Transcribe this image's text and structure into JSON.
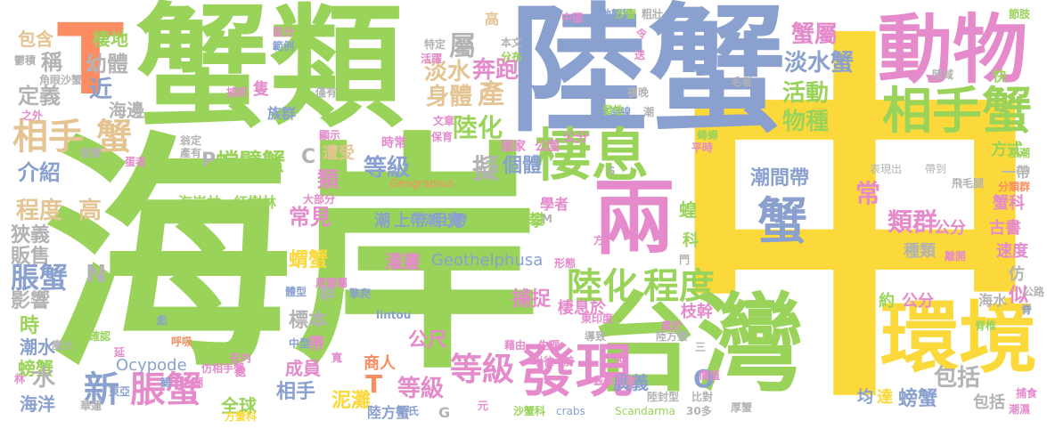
{
  "words": [
    {
      "text": "中",
      "color": "#fcd93a"
    },
    {
      "text": "海岸",
      "color": "#9ad35a"
    },
    {
      "text": "陸蟹",
      "color": "#8aa0cf"
    },
    {
      "text": "蟹類",
      "color": "#9ad35a"
    },
    {
      "text": "台灣",
      "color": "#9ad35a"
    },
    {
      "text": "動物",
      "color": "#e58acb"
    },
    {
      "text": "環境",
      "color": "#fcd93a"
    },
    {
      "text": "兩",
      "color": "#e58acb"
    },
    {
      "text": "T",
      "color": "#fc8d62"
    },
    {
      "text": "棲息",
      "color": "#9ad35a"
    },
    {
      "text": "相手蟹",
      "color": "#9ad35a"
    },
    {
      "text": "蟹",
      "color": "#8aa0cf"
    },
    {
      "text": "發現",
      "color": "#e58acb"
    },
    {
      "text": "陸化",
      "color": "#9ad35a"
    },
    {
      "text": "程度",
      "color": "#9ad35a"
    },
    {
      "text": "等級",
      "color": "#e58acb"
    },
    {
      "text": "新",
      "color": "#8aa0cf"
    },
    {
      "text": "脹蟹",
      "color": "#e58acb"
    },
    {
      "text": "相手",
      "color": "#e5c494"
    },
    {
      "text": "蟹",
      "color": "#e5c494"
    },
    {
      "text": "淡水蟹",
      "color": "#8aa0cf"
    },
    {
      "text": "蟹屬",
      "color": "#e58acb"
    },
    {
      "text": "陸化",
      "color": "#9ad35a"
    },
    {
      "text": "淡水",
      "color": "#e5c494"
    },
    {
      "text": "奔跑",
      "color": "#e58acb"
    },
    {
      "text": "產",
      "color": "#e5c494"
    },
    {
      "text": "身體",
      "color": "#e5c494"
    },
    {
      "text": "屬",
      "color": "#b3b3b3"
    },
    {
      "text": "活動",
      "color": "#9ad35a"
    },
    {
      "text": "物種",
      "color": "#9ad35a"
    },
    {
      "text": "潮間帶",
      "color": "#8aa0cf"
    },
    {
      "text": "類群",
      "color": "#e58acb"
    },
    {
      "text": "包括",
      "color": "#b3b3b3"
    },
    {
      "text": "常",
      "color": "#e58acb"
    },
    {
      "text": "螳臂蟹",
      "color": "#9ad35a"
    },
    {
      "text": "等級",
      "color": "#8aa0cf"
    },
    {
      "text": "擬",
      "color": "#b3b3b3"
    },
    {
      "text": "個體",
      "color": "#8aa0cf"
    },
    {
      "text": "幼體",
      "color": "#b3b3b3"
    },
    {
      "text": "稱",
      "color": "#b3b3b3"
    },
    {
      "text": "近",
      "color": "#8aa0cf"
    },
    {
      "text": "定義",
      "color": "#b3b3b3"
    },
    {
      "text": "海邊",
      "color": "#b3b3b3"
    },
    {
      "text": "棲地",
      "color": "#9ad35a"
    },
    {
      "text": "包含",
      "color": "#e5c494"
    },
    {
      "text": "介紹",
      "color": "#8aa0cf"
    },
    {
      "text": "程度",
      "color": "#e5c494"
    },
    {
      "text": "高",
      "color": "#e5c494"
    },
    {
      "text": "狹義",
      "color": "#b3b3b3"
    },
    {
      "text": "販售",
      "color": "#b3b3b3"
    },
    {
      "text": "影響",
      "color": "#b3b3b3"
    },
    {
      "text": "脹蟹",
      "color": "#8aa0cf"
    },
    {
      "text": "N",
      "color": "#b3b3b3"
    },
    {
      "text": "時",
      "color": "#9ad35a"
    },
    {
      "text": "潮水",
      "color": "#8aa0cf"
    },
    {
      "text": "螃蟹",
      "color": "#9ad35a"
    },
    {
      "text": "水",
      "color": "#b3b3b3"
    },
    {
      "text": "海洋",
      "color": "#8aa0cf"
    },
    {
      "text": "海岸林",
      "color": "#9ad35a"
    },
    {
      "text": "紅樹林",
      "color": "#9ad35a"
    },
    {
      "text": "常見",
      "color": "#e58acb"
    },
    {
      "text": "蝟蟹",
      "color": "#fcd93a"
    },
    {
      "text": "類",
      "color": "#e58acb"
    },
    {
      "text": "遭受",
      "color": "#e5c494"
    },
    {
      "text": "C",
      "color": "#b3b3b3"
    },
    {
      "text": "P",
      "color": "#b3b3b3"
    },
    {
      "text": "潮",
      "color": "#8aa0cf"
    },
    {
      "text": "上帶",
      "color": "#8aa0cf"
    },
    {
      "text": "甲寬",
      "color": "#8aa0cf"
    },
    {
      "text": "約",
      "color": "#9ad35a"
    },
    {
      "text": "林投",
      "color": "#9ad35a"
    },
    {
      "text": "攀",
      "color": "#9ad35a"
    },
    {
      "text": "Geothelphusa",
      "color": "#8aa0cf"
    },
    {
      "text": "灌叢",
      "color": "#e58acb"
    },
    {
      "text": "陸地",
      "color": "#9ad35a"
    },
    {
      "text": "捕捉",
      "color": "#e58acb"
    },
    {
      "text": "棲息於",
      "color": "#e58acb"
    },
    {
      "text": "標本",
      "color": "#b3b3b3"
    },
    {
      "text": "群",
      "color": "#b3b3b3"
    },
    {
      "text": "帶",
      "color": "#e58acb"
    },
    {
      "text": "Ocypode",
      "color": "#8aa0cf"
    },
    {
      "text": "成員",
      "color": "#e58acb"
    },
    {
      "text": "T",
      "color": "#fc8d62"
    },
    {
      "text": "公尺",
      "color": "#e58acb"
    },
    {
      "text": "商人",
      "color": "#fc8d62"
    },
    {
      "text": "等級",
      "color": "#e58acb"
    },
    {
      "text": "廣義",
      "color": "#8aa0cf"
    },
    {
      "text": "O",
      "color": "#8aa0cf"
    },
    {
      "text": "相手",
      "color": "#8aa0cf"
    },
    {
      "text": "全球",
      "color": "#9ad35a"
    },
    {
      "text": "泥灘",
      "color": "#fcd93a"
    },
    {
      "text": "陸方蟹",
      "color": "#8aa0cf"
    },
    {
      "text": "G",
      "color": "#b3b3b3"
    },
    {
      "text": "潮上帶",
      "color": "#8aa0cf"
    },
    {
      "text": "枝幹",
      "color": "#e58acb"
    },
    {
      "text": "約",
      "color": "#9ad35a"
    },
    {
      "text": "公分",
      "color": "#e58acb"
    },
    {
      "text": "海水",
      "color": "#b3b3b3"
    },
    {
      "text": "似",
      "color": "#e58acb"
    },
    {
      "text": "均",
      "color": "#8aa0cf"
    },
    {
      "text": "達",
      "color": "#fcd93a"
    },
    {
      "text": "螃蟹",
      "color": "#8aa0cf"
    },
    {
      "text": "包括",
      "color": "#b3b3b3"
    },
    {
      "text": "方式",
      "color": "#9ad35a"
    },
    {
      "text": "一帶",
      "color": "#b3b3b3"
    },
    {
      "text": "蟹科",
      "color": "#e58acb"
    },
    {
      "text": "古書",
      "color": "#e58acb"
    },
    {
      "text": "速度",
      "color": "#e58acb"
    },
    {
      "text": "仿",
      "color": "#b3b3b3"
    },
    {
      "text": "種類",
      "color": "#b3b3b3"
    },
    {
      "text": "公分",
      "color": "#e58acb"
    },
    {
      "text": "國家",
      "color": "#e58acb"
    },
    {
      "text": "公園",
      "color": "#e58acb"
    },
    {
      "text": "學者",
      "color": "#e58acb"
    },
    {
      "text": "高",
      "color": "#e5c494"
    },
    {
      "text": "快",
      "color": "#9ad35a"
    },
    {
      "text": "時常",
      "color": "#e58acb"
    },
    {
      "text": "蝗",
      "color": "#9ad35a"
    },
    {
      "text": "科",
      "color": "#9ad35a"
    },
    {
      "text": "公分",
      "color": "#e58acb"
    },
    {
      "text": "表現出",
      "color": "#b3b3b3"
    },
    {
      "text": "帶到",
      "color": "#b3b3b3"
    },
    {
      "text": "Geograpsus",
      "color": "#fc8d62"
    },
    {
      "text": "陸封型",
      "color": "#b3b3b3"
    },
    {
      "text": "高潮線",
      "color": "#8aa0cf"
    },
    {
      "text": "潮",
      "color": "#b3b3b3"
    },
    {
      "text": "地蟹科",
      "color": "#8aa0cf"
    },
    {
      "text": "沙蟹",
      "color": "#9ad35a"
    },
    {
      "text": "洞",
      "color": "#9ad35a"
    },
    {
      "text": "呼吸",
      "color": "#fc8d62"
    },
    {
      "text": "自然",
      "color": "#9ad35a"
    },
    {
      "text": "在內",
      "color": "#e58acb"
    },
    {
      "text": "處",
      "color": "#e58acb"
    },
    {
      "text": "大潮",
      "color": "#e58acb"
    },
    {
      "text": "鰓",
      "color": "#8aa0cf"
    },
    {
      "text": "確認",
      "color": "#9ad35a"
    },
    {
      "text": "魔大",
      "color": "#b3b3b3"
    },
    {
      "text": "體型",
      "color": "#8aa0cf"
    },
    {
      "text": "擎爬",
      "color": "#8aa0cf"
    },
    {
      "text": "岩礁",
      "color": "#9ad35a"
    },
    {
      "text": "lintou",
      "color": "#8aa0cf"
    },
    {
      "text": "斯氏",
      "color": "#8aa0cf"
    },
    {
      "text": "沙蟹科",
      "color": "#9ad35a"
    },
    {
      "text": "crabs",
      "color": "#8aa0cf"
    },
    {
      "text": "Scandarma",
      "color": "#9ad35a"
    },
    {
      "text": "30多",
      "color": "#b3b3b3"
    },
    {
      "text": "厚蟹",
      "color": "#b3b3b3"
    },
    {
      "text": "捕食",
      "color": "#e58acb"
    },
    {
      "text": "潮濕",
      "color": "#e58acb"
    },
    {
      "text": "藉由",
      "color": "#e58acb"
    },
    {
      "text": "生理",
      "color": "#e58acb"
    },
    {
      "text": "元",
      "color": "#e58acb"
    },
    {
      "text": "仿相手蟹",
      "color": "#e58acb"
    },
    {
      "text": "東亞",
      "color": "#8aa0cf"
    },
    {
      "text": "方蟹科",
      "color": "#fcd93a"
    },
    {
      "text": "陸方蟹",
      "color": "#b3b3b3"
    },
    {
      "text": "東印度",
      "color": "#e58acb"
    },
    {
      "text": "形態",
      "color": "#e58acb"
    },
    {
      "text": "節肢",
      "color": "#9ad35a"
    },
    {
      "text": "陸域",
      "color": "#b3b3b3"
    },
    {
      "text": "族群",
      "color": "#8aa0cf"
    },
    {
      "text": "隻",
      "color": "#e58acb"
    },
    {
      "text": "特定",
      "color": "#b3b3b3"
    },
    {
      "text": "活躍",
      "color": "#e58acb"
    },
    {
      "text": "本文",
      "color": "#b3b3b3"
    },
    {
      "text": "分布",
      "color": "#9ad35a"
    },
    {
      "text": "文章",
      "color": "#e58acb"
    },
    {
      "text": "保育",
      "color": "#e58acb"
    },
    {
      "text": "發性",
      "color": "#9ad35a"
    },
    {
      "text": "夜晚",
      "color": "#b3b3b3"
    },
    {
      "text": "平時",
      "color": "#e58acb"
    },
    {
      "text": "蟳蟳",
      "color": "#9ad35a"
    },
    {
      "text": "漲潮",
      "color": "#9ad35a"
    },
    {
      "text": "分類群",
      "color": "#fc8d62"
    },
    {
      "text": "飛毛腿",
      "color": "#b3b3b3"
    },
    {
      "text": "離開",
      "color": "#e58acb"
    },
    {
      "text": "公路",
      "color": "#b3b3b3"
    },
    {
      "text": "脊椎",
      "color": "#9ad35a"
    },
    {
      "text": "比對",
      "color": "#b3b3b3"
    },
    {
      "text": "以往",
      "color": "#e58acb"
    },
    {
      "text": "前",
      "color": "#e58acb"
    },
    {
      "text": "中國",
      "color": "#e58acb"
    },
    {
      "text": "粗壯",
      "color": "#b3b3b3"
    },
    {
      "text": "毛者",
      "color": "#b3b3b3"
    },
    {
      "text": "區分",
      "color": "#e58acb"
    },
    {
      "text": "範例",
      "color": "#8aa0cf"
    },
    {
      "text": "捕抓",
      "color": "#e58acb"
    },
    {
      "text": "僅有",
      "color": "#b3b3b3"
    },
    {
      "text": "顯示",
      "color": "#e58acb"
    },
    {
      "text": "翁定",
      "color": "#b3b3b3"
    },
    {
      "text": "產有",
      "color": "#b3b3b3"
    },
    {
      "text": "蛋者",
      "color": "#e58acb"
    },
    {
      "text": "大部分",
      "color": "#e58acb"
    },
    {
      "text": "樹蟹",
      "color": "#b3b3b3"
    },
    {
      "text": "角眼沙蟹",
      "color": "#b3b3b3"
    },
    {
      "text": "之外",
      "color": "#e58acb"
    },
    {
      "text": "鬱積",
      "color": "#b3b3b3"
    },
    {
      "text": "中型",
      "color": "#8aa0cf"
    },
    {
      "text": "厚蟹屬",
      "color": "#e58acb"
    },
    {
      "text": "導致",
      "color": "#b3b3b3"
    },
    {
      "text": "華蓮",
      "color": "#b3b3b3"
    },
    {
      "text": "林",
      "color": "#e58acb"
    },
    {
      "text": "延",
      "color": "#e58acb"
    },
    {
      "text": "方",
      "color": "#e58acb"
    },
    {
      "text": "M",
      "color": "#b3b3b3"
    },
    {
      "text": "S",
      "color": "#b3b3b3"
    },
    {
      "text": "門",
      "color": "#b3b3b3"
    },
    {
      "text": "令",
      "color": "#e58acb"
    },
    {
      "text": "送",
      "color": "#e58acb"
    },
    {
      "text": "產於",
      "color": "#e58acb"
    },
    {
      "text": "紀",
      "color": "#e58acb"
    },
    {
      "text": "價值",
      "color": "#e58acb"
    },
    {
      "text": "三",
      "color": "#b3b3b3"
    },
    {
      "text": "茲茲可致",
      "color": "#e58acb"
    },
    {
      "text": "寬",
      "color": "#e58acb"
    },
    {
      "text": "彪",
      "color": "#8aa0cf"
    },
    {
      "text": "脊",
      "color": "#8aa0cf"
    }
  ]
}
